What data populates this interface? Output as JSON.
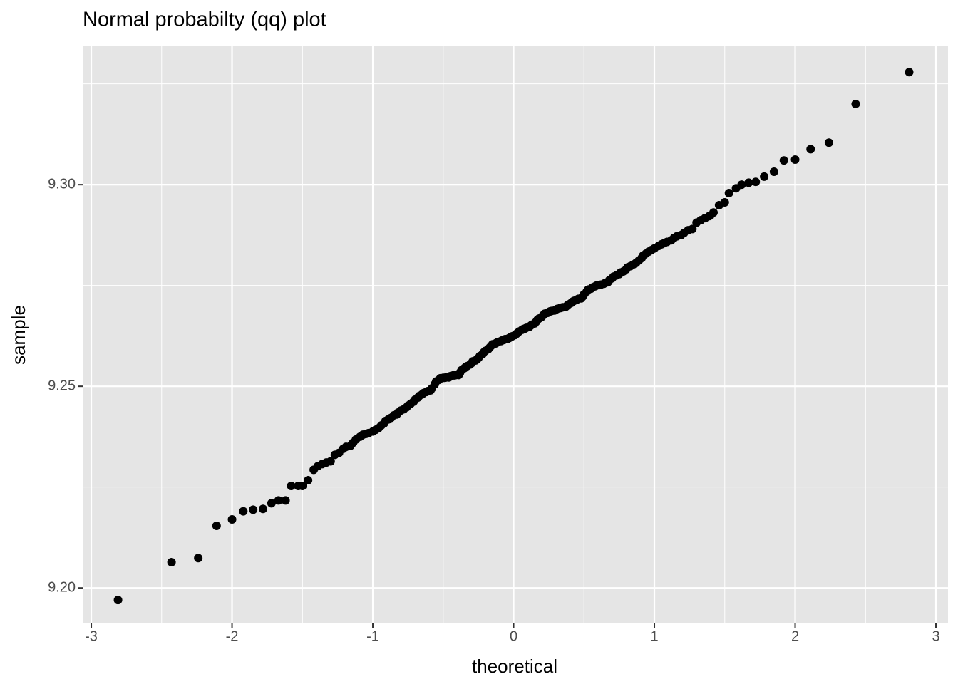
{
  "chart_data": {
    "type": "scatter",
    "title": "Normal probabilty (qq) plot",
    "x_label": "theoretical",
    "y_label": "sample",
    "color": "#000000",
    "grid": true,
    "xlim": [
      -3.061,
      3.086
    ],
    "ylim": [
      9.1912,
      9.3343
    ],
    "xticks": [
      -3,
      -2,
      -1,
      0,
      1,
      2,
      3
    ],
    "yticks": [
      {
        "value": 9.2,
        "label": "9.20"
      },
      9.25,
      {
        "value": 9.3,
        "label": "9.30"
      }
    ],
    "x": [
      -2.81,
      -2.43,
      -2.24,
      -2.11,
      -2.0,
      -1.92,
      -1.85,
      -1.78,
      -1.72,
      -1.67,
      -1.62,
      -1.58,
      -1.53,
      -1.5,
      -1.46,
      -1.42,
      -1.39,
      -1.36,
      -1.33,
      -1.3,
      -1.27,
      -1.24,
      -1.21,
      -1.19,
      -1.16,
      -1.14,
      -1.12,
      -1.09,
      -1.07,
      -1.05,
      -1.03,
      -1.0,
      -0.98,
      -0.96,
      -0.94,
      -0.92,
      -0.91,
      -0.89,
      -0.87,
      -0.85,
      -0.83,
      -0.82,
      -0.8,
      -0.78,
      -0.76,
      -0.75,
      -0.73,
      -0.71,
      -0.7,
      -0.68,
      -0.67,
      -0.65,
      -0.64,
      -0.62,
      -0.61,
      -0.59,
      -0.58,
      -0.56,
      -0.55,
      -0.53,
      -0.52,
      -0.5,
      -0.49,
      -0.48,
      -0.46,
      -0.45,
      -0.43,
      -0.42,
      -0.41,
      -0.39,
      -0.38,
      -0.37,
      -0.35,
      -0.34,
      -0.33,
      -0.31,
      -0.3,
      -0.29,
      -0.27,
      -0.26,
      -0.25,
      -0.24,
      -0.22,
      -0.21,
      -0.2,
      -0.18,
      -0.17,
      -0.16,
      -0.15,
      -0.13,
      -0.12,
      -0.11,
      -0.09,
      -0.08,
      -0.07,
      -0.06,
      -0.04,
      -0.03,
      -0.02,
      -0.01,
      0.01,
      0.02,
      0.03,
      0.04,
      0.06,
      0.07,
      0.08,
      0.09,
      0.11,
      0.12,
      0.13,
      0.15,
      0.16,
      0.17,
      0.18,
      0.2,
      0.21,
      0.22,
      0.24,
      0.25,
      0.26,
      0.27,
      0.29,
      0.3,
      0.31,
      0.33,
      0.34,
      0.35,
      0.37,
      0.38,
      0.39,
      0.41,
      0.42,
      0.43,
      0.45,
      0.46,
      0.48,
      0.49,
      0.5,
      0.52,
      0.53,
      0.55,
      0.56,
      0.58,
      0.59,
      0.61,
      0.62,
      0.64,
      0.65,
      0.67,
      0.68,
      0.7,
      0.71,
      0.73,
      0.75,
      0.76,
      0.78,
      0.8,
      0.81,
      0.83,
      0.85,
      0.87,
      0.89,
      0.91,
      0.92,
      0.94,
      0.96,
      0.98,
      1.0,
      1.03,
      1.05,
      1.07,
      1.09,
      1.12,
      1.14,
      1.16,
      1.19,
      1.21,
      1.24,
      1.27,
      1.3,
      1.33,
      1.36,
      1.39,
      1.42,
      1.46,
      1.5,
      1.53,
      1.58,
      1.62,
      1.67,
      1.72,
      1.78,
      1.85,
      1.92,
      2.0,
      2.11,
      2.24,
      2.43,
      2.81
    ],
    "values": [
      9.197,
      9.2064,
      9.2074,
      9.2154,
      9.217,
      9.219,
      9.2194,
      9.2196,
      9.221,
      9.2217,
      9.2217,
      9.2253,
      9.2253,
      9.2253,
      9.2267,
      9.2293,
      9.2302,
      9.2307,
      9.2311,
      9.2314,
      9.233,
      9.2335,
      9.2345,
      9.235,
      9.2352,
      9.236,
      9.2368,
      9.2375,
      9.238,
      9.2382,
      9.2384,
      9.2388,
      9.2392,
      9.2396,
      9.2403,
      9.2408,
      9.2414,
      9.2418,
      9.2422,
      9.2428,
      9.243,
      9.2435,
      9.244,
      9.2443,
      9.2448,
      9.2452,
      9.2457,
      9.2462,
      9.2467,
      9.2472,
      9.2476,
      9.248,
      9.2483,
      9.2486,
      9.2488,
      9.249,
      9.2495,
      9.2505,
      9.2512,
      9.2516,
      9.252,
      9.2521,
      9.2521,
      9.2522,
      9.2522,
      9.2525,
      9.2527,
      9.2527,
      9.2528,
      9.2528,
      9.2534,
      9.254,
      9.2545,
      9.2548,
      9.255,
      9.2554,
      9.2557,
      9.2562,
      9.2564,
      9.2567,
      9.257,
      9.2575,
      9.258,
      9.2585,
      9.2588,
      9.2592,
      9.2596,
      9.26,
      9.2604,
      9.2606,
      9.2608,
      9.261,
      9.2612,
      9.2614,
      9.2615,
      9.2617,
      9.2618,
      9.262,
      9.2622,
      9.2624,
      9.2627,
      9.263,
      9.2633,
      9.2636,
      9.264,
      9.2642,
      9.2643,
      9.2645,
      9.2647,
      9.265,
      9.2653,
      9.2656,
      9.266,
      9.2665,
      9.2668,
      9.2672,
      9.2676,
      9.268,
      9.2682,
      9.2684,
      9.2686,
      9.2687,
      9.2688,
      9.269,
      9.2692,
      9.2694,
      9.2695,
      9.2696,
      9.2697,
      9.27,
      9.2703,
      9.2707,
      9.271,
      9.2712,
      9.2715,
      9.2717,
      9.2718,
      9.2722,
      9.2728,
      9.2735,
      9.274,
      9.2742,
      9.2745,
      9.2748,
      9.275,
      9.2751,
      9.2752,
      9.2754,
      9.2756,
      9.2758,
      9.2763,
      9.2768,
      9.2772,
      9.2775,
      9.2778,
      9.2782,
      9.2785,
      9.279,
      9.2795,
      9.2798,
      9.2802,
      9.2806,
      9.2812,
      9.2818,
      9.2824,
      9.2829,
      9.2834,
      9.2838,
      9.2842,
      9.2848,
      9.2852,
      9.2855,
      9.2858,
      9.2862,
      9.2868,
      9.2872,
      9.2875,
      9.288,
      9.2887,
      9.289,
      9.2906,
      9.2912,
      9.2917,
      9.2922,
      9.2931,
      9.2949,
      9.2956,
      9.2979,
      9.2991,
      9.3,
      9.3005,
      9.3007,
      9.302,
      9.3032,
      9.306,
      9.3062,
      9.3088,
      9.3104,
      9.32,
      9.3279
    ]
  }
}
